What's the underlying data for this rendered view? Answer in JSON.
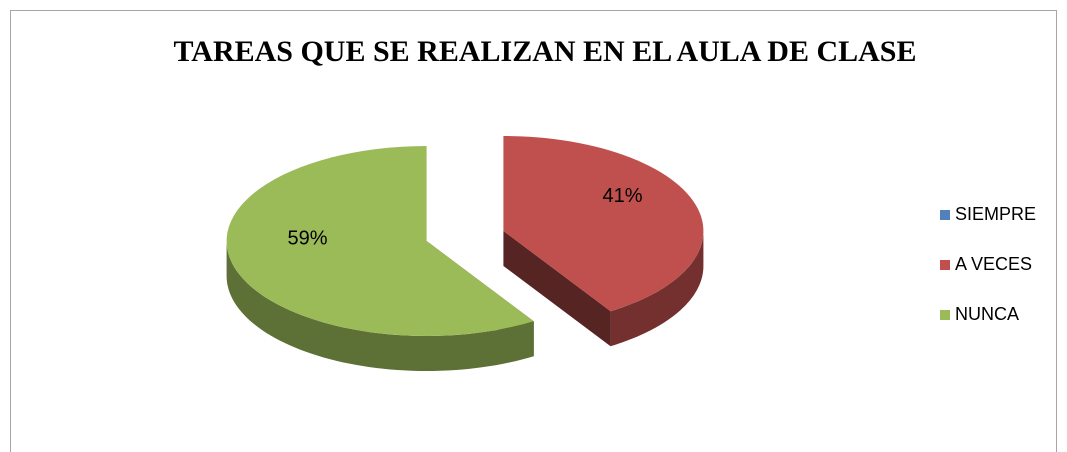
{
  "chart_data": {
    "type": "pie",
    "title": "TAREAS QUE SE REALIZAN EN EL AULA DE CLASE",
    "categories": [
      "SIEMPRE",
      "A VECES",
      "NUNCA"
    ],
    "values": [
      0,
      41,
      59
    ],
    "value_labels": [
      null,
      "41%",
      "59%"
    ],
    "colors": [
      "#4f81bd",
      "#c0504d",
      "#9bbb59"
    ],
    "legend": "right"
  }
}
